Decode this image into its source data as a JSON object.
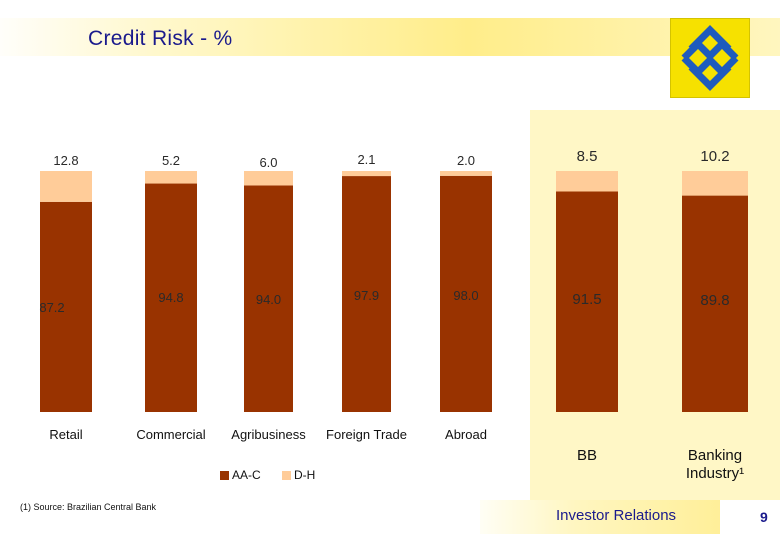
{
  "header": {
    "title": "Credit Risk - %"
  },
  "logo": {
    "icon": "banco-do-brasil-logo-icon",
    "background": "#f6e100",
    "mark_color": "#1f5bbd"
  },
  "colors": {
    "aa_c": "#993300",
    "d_h": "#ffcc99",
    "panel": "#fff7c6"
  },
  "chart_data": {
    "type": "bar",
    "stacked": true,
    "percent": true,
    "title": "Credit Risk - %",
    "xlabel": "",
    "ylabel": "",
    "ylim": [
      0,
      100
    ],
    "grid": false,
    "legend_position": "bottom",
    "categories": [
      "Retail",
      "Commercial",
      "Agribusiness",
      "Foreign Trade",
      "Abroad",
      "BB",
      "Banking Industry¹"
    ],
    "series": [
      {
        "name": "AA-C",
        "values": [
          87.2,
          94.8,
          94.0,
          97.9,
          98.0,
          91.5,
          89.8
        ],
        "labels": [
          "87.2",
          "94.8",
          "94.0",
          "97.9",
          "98.0",
          "91.5",
          "89.8"
        ]
      },
      {
        "name": "D-H",
        "values": [
          12.8,
          5.2,
          6.0,
          2.1,
          2.0,
          8.5,
          10.2
        ],
        "labels": [
          "12.8",
          "5.2",
          "6.0",
          "2.1",
          "2.0",
          "8.5",
          "10.2"
        ]
      }
    ]
  },
  "legend": {
    "items": [
      "AA-C",
      "D-H"
    ]
  },
  "footnote": "(1) Source: Brazilian Central Bank",
  "footer": {
    "label": "Investor Relations",
    "page": "9"
  }
}
